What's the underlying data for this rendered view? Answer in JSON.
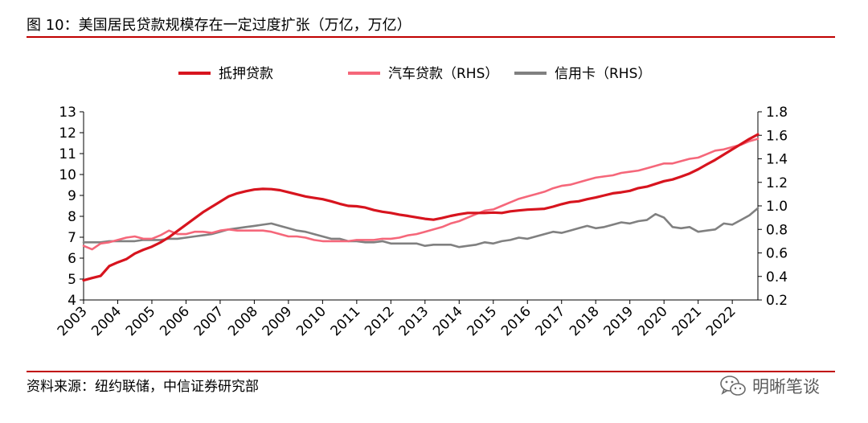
{
  "header": {
    "title": "图 10：美国居民贷款规模存在一定过度扩张（万亿，万亿）"
  },
  "footer": {
    "source": "资料来源：纽约联储，中信证券研究部",
    "watermark": "明晰笔谈",
    "watermark_icon": "wechat-icon"
  },
  "colors": {
    "accent": "#c00000",
    "mortgage": "#d7141e",
    "auto": "#f5677a",
    "card": "#808080"
  },
  "chart_data": {
    "type": "line",
    "title": "",
    "xlabel": "",
    "ylabel": "",
    "x_start": 2003.0,
    "x_step": 0.25,
    "x_ticks": [
      2003,
      2004,
      2005,
      2006,
      2007,
      2008,
      2009,
      2010,
      2011,
      2012,
      2013,
      2014,
      2015,
      2016,
      2017,
      2018,
      2019,
      2020,
      2021,
      2022
    ],
    "y_left": {
      "range": [
        4,
        13
      ],
      "ticks": [
        4,
        5,
        6,
        7,
        8,
        9,
        10,
        11,
        12,
        13
      ]
    },
    "y_right": {
      "range": [
        0.2,
        1.8
      ],
      "ticks": [
        "0.2",
        "0.4",
        "0.6",
        "0.8",
        "1.0",
        "1.2",
        "1.4",
        "1.6",
        "1.8"
      ]
    },
    "grid": false,
    "legend": "top",
    "series": [
      {
        "name": "抵押贷款",
        "axis": "left",
        "color": "#d7141e",
        "values": [
          4.94,
          5.05,
          5.15,
          5.62,
          5.8,
          5.95,
          6.22,
          6.4,
          6.55,
          6.75,
          7.0,
          7.3,
          7.6,
          7.9,
          8.2,
          8.45,
          8.7,
          8.95,
          9.1,
          9.2,
          9.28,
          9.31,
          9.3,
          9.25,
          9.15,
          9.05,
          8.95,
          8.88,
          8.82,
          8.72,
          8.6,
          8.5,
          8.48,
          8.42,
          8.3,
          8.22,
          8.16,
          8.08,
          8.02,
          7.95,
          7.88,
          7.84,
          7.92,
          8.02,
          8.1,
          8.16,
          8.16,
          8.16,
          8.18,
          8.16,
          8.24,
          8.28,
          8.32,
          8.34,
          8.36,
          8.46,
          8.58,
          8.68,
          8.72,
          8.82,
          8.9,
          9.0,
          9.1,
          9.15,
          9.22,
          9.35,
          9.42,
          9.55,
          9.68,
          9.76,
          9.9,
          10.05,
          10.25,
          10.48,
          10.7,
          10.95,
          11.2,
          11.45,
          11.7,
          11.92
        ]
      },
      {
        "name": "汽车贷款（RHS）",
        "axis": "right",
        "color": "#f5677a",
        "values": [
          0.66,
          0.63,
          0.68,
          0.69,
          0.71,
          0.73,
          0.74,
          0.72,
          0.72,
          0.75,
          0.79,
          0.76,
          0.76,
          0.78,
          0.78,
          0.77,
          0.79,
          0.8,
          0.79,
          0.79,
          0.79,
          0.79,
          0.78,
          0.76,
          0.74,
          0.74,
          0.73,
          0.71,
          0.7,
          0.7,
          0.7,
          0.7,
          0.71,
          0.71,
          0.71,
          0.72,
          0.72,
          0.73,
          0.75,
          0.76,
          0.78,
          0.8,
          0.82,
          0.85,
          0.87,
          0.9,
          0.93,
          0.96,
          0.97,
          1.0,
          1.03,
          1.06,
          1.08,
          1.1,
          1.12,
          1.15,
          1.17,
          1.18,
          1.2,
          1.22,
          1.24,
          1.25,
          1.26,
          1.28,
          1.29,
          1.3,
          1.32,
          1.34,
          1.36,
          1.36,
          1.38,
          1.4,
          1.41,
          1.44,
          1.47,
          1.48,
          1.5,
          1.52,
          1.55,
          1.57
        ]
      },
      {
        "name": "信用卡（RHS）",
        "axis": "right",
        "color": "#808080",
        "values": [
          0.69,
          0.69,
          0.69,
          0.7,
          0.7,
          0.7,
          0.7,
          0.71,
          0.71,
          0.71,
          0.72,
          0.72,
          0.73,
          0.74,
          0.75,
          0.76,
          0.78,
          0.8,
          0.81,
          0.82,
          0.83,
          0.84,
          0.85,
          0.83,
          0.81,
          0.79,
          0.78,
          0.76,
          0.74,
          0.72,
          0.72,
          0.7,
          0.7,
          0.69,
          0.69,
          0.7,
          0.68,
          0.68,
          0.68,
          0.68,
          0.66,
          0.67,
          0.67,
          0.67,
          0.65,
          0.66,
          0.67,
          0.69,
          0.68,
          0.7,
          0.71,
          0.73,
          0.72,
          0.74,
          0.76,
          0.78,
          0.77,
          0.79,
          0.81,
          0.83,
          0.81,
          0.82,
          0.84,
          0.86,
          0.85,
          0.87,
          0.88,
          0.93,
          0.9,
          0.82,
          0.81,
          0.82,
          0.78,
          0.79,
          0.8,
          0.85,
          0.84,
          0.88,
          0.92,
          0.98
        ]
      }
    ]
  }
}
